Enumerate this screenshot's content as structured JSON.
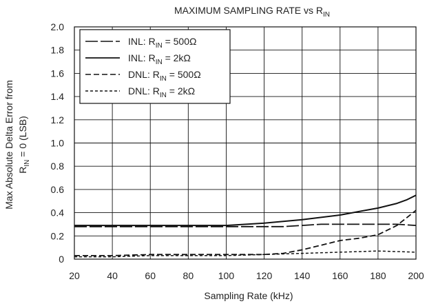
{
  "chart_data": {
    "type": "line",
    "title": {
      "main": "MAXIMUM SAMPLING RATE vs R",
      "sub": "IN"
    },
    "xlabel": "Sampling Rate (kHz)",
    "ylabel": {
      "line1": "Max Absolute Delta Error from",
      "line2_pre": "R",
      "line2_sub": "IN",
      "line2_post": " = 0 (LSB)"
    },
    "xlim": [
      20,
      200
    ],
    "ylim": [
      0,
      2.0
    ],
    "x_ticks": [
      "20",
      "40",
      "60",
      "80",
      "100",
      "120",
      "140",
      "160",
      "180",
      "200"
    ],
    "y_ticks": [
      "0",
      "0.2",
      "0.4",
      "0.6",
      "0.8",
      "1.0",
      "1.2",
      "1.4",
      "1.6",
      "1.8",
      "2.0"
    ],
    "grid": true,
    "legend_position": "top-left",
    "colors": {
      "line": "#111111",
      "grid": "#111111"
    },
    "series": [
      {
        "legend_pre": "INL: R",
        "legend_sub": "IN",
        "legend_post": " = 500Ω",
        "dash": "long-dash",
        "x": [
          20,
          40,
          60,
          80,
          100,
          120,
          130,
          140,
          150,
          160,
          170,
          180,
          190,
          200
        ],
        "y": [
          0.28,
          0.28,
          0.28,
          0.28,
          0.28,
          0.28,
          0.28,
          0.29,
          0.3,
          0.3,
          0.3,
          0.3,
          0.3,
          0.29
        ]
      },
      {
        "legend_pre": "INL: R",
        "legend_sub": "IN",
        "legend_post": " = 2kΩ",
        "dash": "solid",
        "x": [
          20,
          40,
          60,
          80,
          100,
          120,
          140,
          160,
          170,
          180,
          190,
          195,
          200
        ],
        "y": [
          0.29,
          0.29,
          0.29,
          0.29,
          0.29,
          0.31,
          0.34,
          0.38,
          0.41,
          0.44,
          0.48,
          0.51,
          0.55
        ]
      },
      {
        "legend_pre": "DNL: R",
        "legend_sub": "IN",
        "legend_post": " = 500Ω",
        "dash": "dash",
        "x": [
          20,
          40,
          60,
          80,
          100,
          120,
          130,
          140,
          150,
          160,
          170,
          180,
          190,
          200
        ],
        "y": [
          0.03,
          0.03,
          0.04,
          0.04,
          0.04,
          0.04,
          0.05,
          0.08,
          0.12,
          0.16,
          0.18,
          0.21,
          0.29,
          0.42
        ]
      },
      {
        "legend_pre": "DNL: R",
        "legend_sub": "IN",
        "legend_post": " = 2kΩ",
        "dash": "short-dash",
        "x": [
          20,
          40,
          60,
          80,
          100,
          120,
          140,
          160,
          180,
          200
        ],
        "y": [
          0.02,
          0.02,
          0.03,
          0.03,
          0.03,
          0.04,
          0.05,
          0.06,
          0.07,
          0.06
        ]
      }
    ]
  }
}
